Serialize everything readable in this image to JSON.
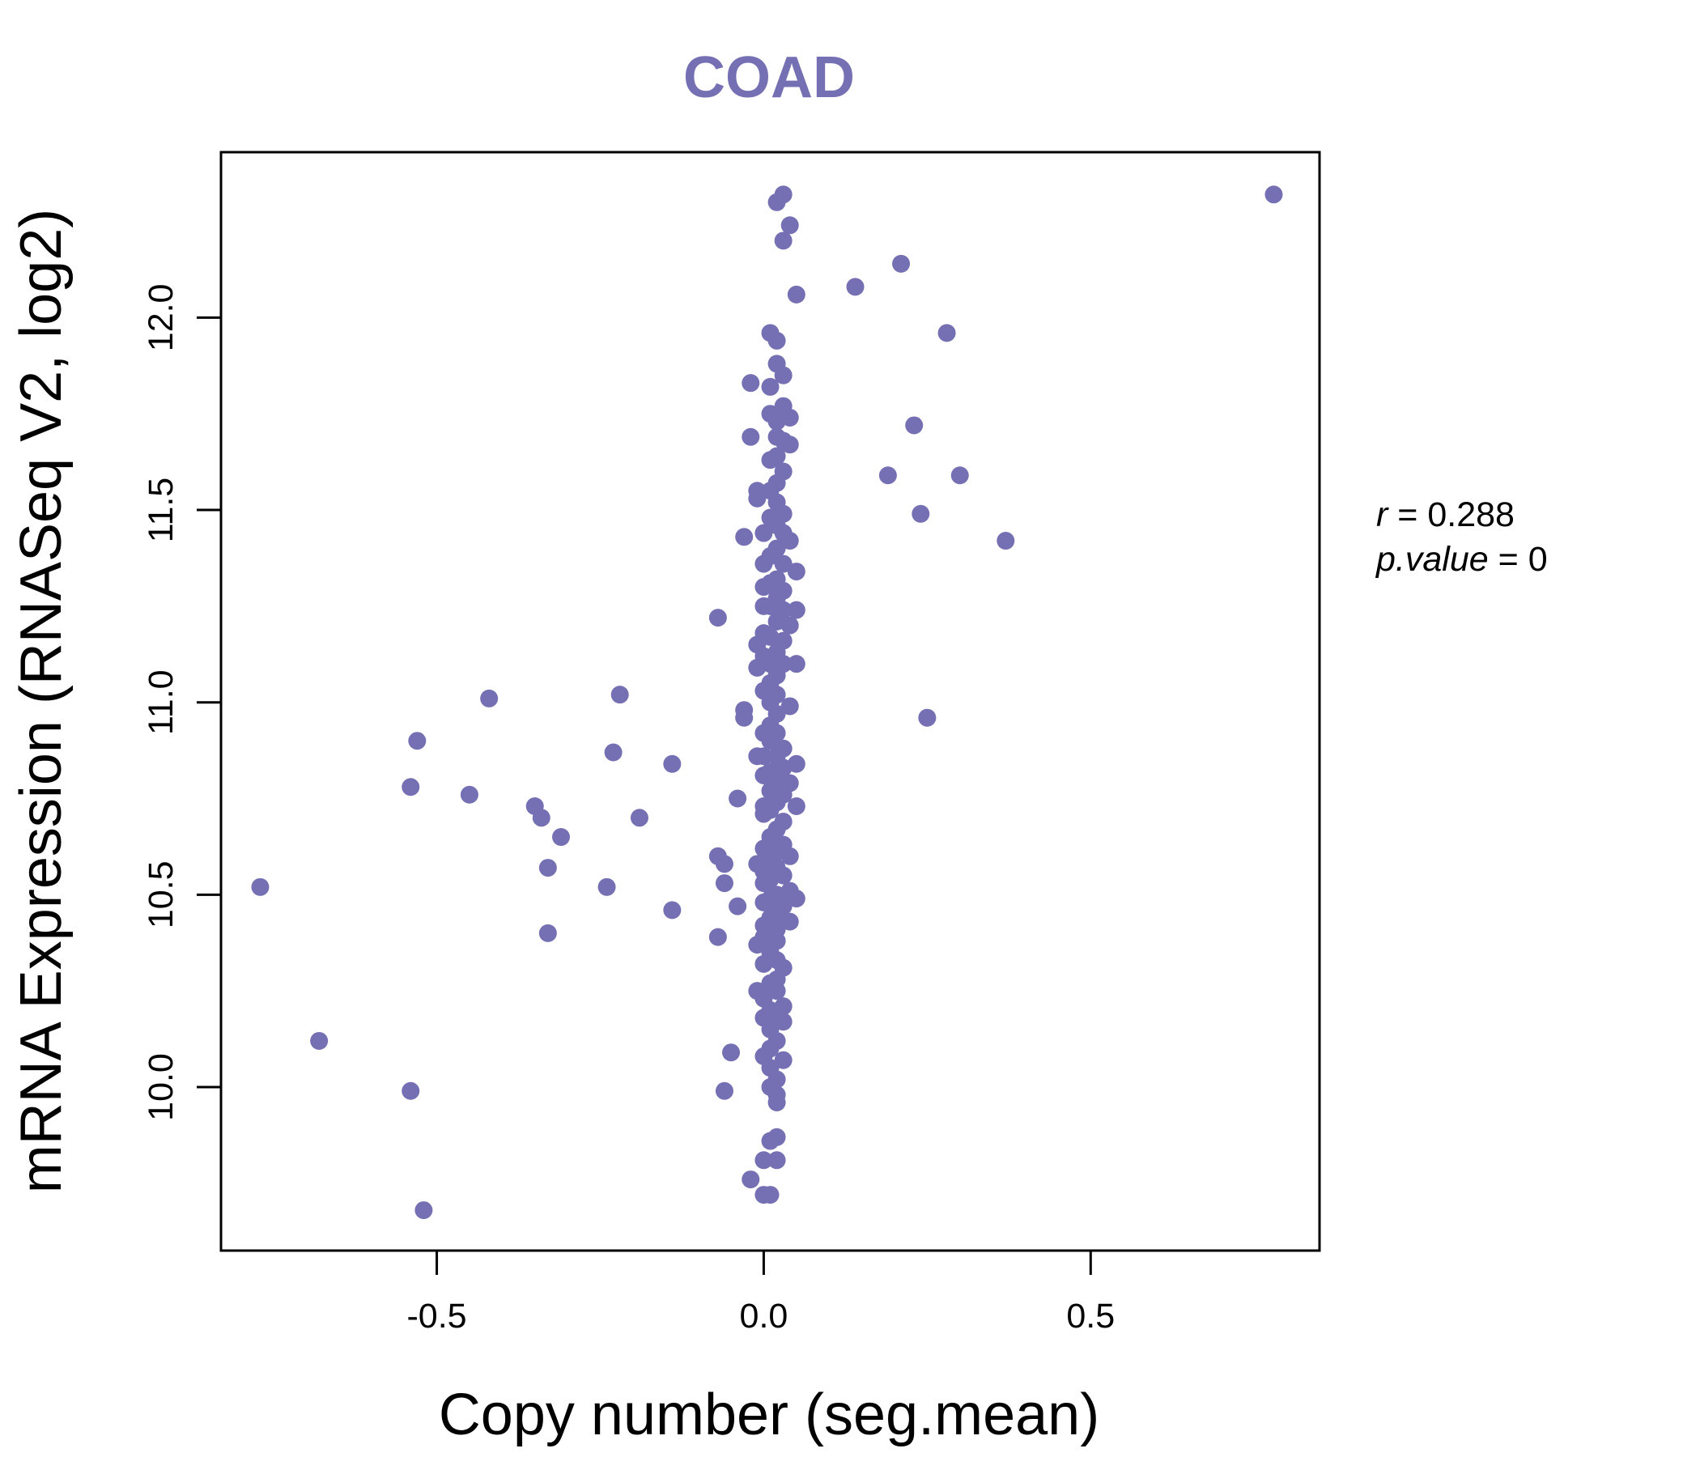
{
  "chart_data": {
    "type": "scatter",
    "title": "COAD",
    "xlabel": "Copy number (seg.mean)",
    "ylabel": "mRNA Expression (RNASeq V2, log2)",
    "xlim": [
      -0.83,
      0.85
    ],
    "ylim": [
      9.575,
      12.43
    ],
    "xticks": [
      -0.5,
      0.0,
      0.5
    ],
    "xtick_labels": [
      "-0.5",
      "0.0",
      "0.5"
    ],
    "yticks": [
      10.0,
      10.5,
      11.0,
      11.5,
      12.0
    ],
    "ytick_labels": [
      "10.0",
      "10.5",
      "11.0",
      "11.5",
      "12.0"
    ],
    "grid": false,
    "point_color": "#7570b3",
    "stats": {
      "r_symbol": "r",
      "r_value": "0.288",
      "p_symbol": "p.value",
      "p_value": "0"
    },
    "points": [
      [
        0.03,
        12.32
      ],
      [
        0.02,
        12.3
      ],
      [
        0.04,
        12.24
      ],
      [
        0.03,
        12.2
      ],
      [
        0.05,
        12.06
      ],
      [
        0.01,
        11.96
      ],
      [
        0.02,
        11.94
      ],
      [
        0.02,
        11.88
      ],
      [
        0.03,
        11.85
      ],
      [
        -0.02,
        11.83
      ],
      [
        0.01,
        11.82
      ],
      [
        0.03,
        11.77
      ],
      [
        0.01,
        11.75
      ],
      [
        0.04,
        11.74
      ],
      [
        0.02,
        11.73
      ],
      [
        0.02,
        11.69
      ],
      [
        -0.02,
        11.69
      ],
      [
        0.03,
        11.68
      ],
      [
        0.04,
        11.67
      ],
      [
        0.02,
        11.64
      ],
      [
        0.01,
        11.63
      ],
      [
        0.03,
        11.6
      ],
      [
        0.02,
        11.57
      ],
      [
        0.01,
        11.55
      ],
      [
        -0.01,
        11.55
      ],
      [
        -0.01,
        11.53
      ],
      [
        0.02,
        11.52
      ],
      [
        0.03,
        11.49
      ],
      [
        0.01,
        11.48
      ],
      [
        0.02,
        11.46
      ],
      [
        0.03,
        11.44
      ],
      [
        0.0,
        11.44
      ],
      [
        0.04,
        11.42
      ],
      [
        0.02,
        11.4
      ],
      [
        -0.03,
        11.43
      ],
      [
        0.01,
        11.38
      ],
      [
        0.03,
        11.36
      ],
      [
        0.0,
        11.36
      ],
      [
        0.05,
        11.34
      ],
      [
        0.02,
        11.32
      ],
      [
        0.01,
        11.31
      ],
      [
        0.0,
        11.3
      ],
      [
        0.03,
        11.29
      ],
      [
        0.02,
        11.27
      ],
      [
        0.01,
        11.25
      ],
      [
        0.0,
        11.25
      ],
      [
        0.03,
        11.24
      ],
      [
        0.05,
        11.24
      ],
      [
        0.02,
        11.21
      ],
      [
        0.04,
        11.2
      ],
      [
        -0.07,
        11.22
      ],
      [
        0.0,
        11.18
      ],
      [
        0.01,
        11.17
      ],
      [
        0.03,
        11.16
      ],
      [
        -0.01,
        11.15
      ],
      [
        0.02,
        11.13
      ],
      [
        0.0,
        11.12
      ],
      [
        0.01,
        11.1
      ],
      [
        0.03,
        11.1
      ],
      [
        0.05,
        11.1
      ],
      [
        -0.01,
        11.09
      ],
      [
        0.02,
        11.07
      ],
      [
        0.01,
        11.05
      ],
      [
        0.0,
        11.03
      ],
      [
        0.02,
        11.02
      ],
      [
        0.01,
        11.0
      ],
      [
        0.04,
        10.99
      ],
      [
        -0.03,
        10.98
      ],
      [
        0.02,
        10.97
      ],
      [
        -0.03,
        10.96
      ],
      [
        0.01,
        10.94
      ],
      [
        0.02,
        10.92
      ],
      [
        0.0,
        10.92
      ],
      [
        0.01,
        10.9
      ],
      [
        0.03,
        10.88
      ],
      [
        0.0,
        10.86
      ],
      [
        0.02,
        10.86
      ],
      [
        -0.01,
        10.86
      ],
      [
        0.05,
        10.84
      ],
      [
        0.03,
        10.83
      ],
      [
        0.01,
        10.82
      ],
      [
        0.0,
        10.81
      ],
      [
        0.02,
        10.8
      ],
      [
        0.04,
        10.79
      ],
      [
        0.01,
        10.77
      ],
      [
        0.03,
        10.76
      ],
      [
        -0.04,
        10.75
      ],
      [
        0.02,
        10.74
      ],
      [
        0.0,
        10.73
      ],
      [
        0.05,
        10.73
      ],
      [
        0.01,
        10.72
      ],
      [
        0.0,
        10.71
      ],
      [
        0.03,
        10.69
      ],
      [
        0.02,
        10.67
      ],
      [
        0.01,
        10.65
      ],
      [
        0.03,
        10.63
      ],
      [
        0.0,
        10.62
      ],
      [
        0.02,
        10.61
      ],
      [
        0.04,
        10.6
      ],
      [
        -0.07,
        10.6
      ],
      [
        0.01,
        10.59
      ],
      [
        -0.01,
        10.58
      ],
      [
        -0.06,
        10.58
      ],
      [
        0.02,
        10.57
      ],
      [
        0.0,
        10.56
      ],
      [
        0.03,
        10.55
      ],
      [
        0.01,
        10.54
      ],
      [
        -0.06,
        10.53
      ],
      [
        0.0,
        10.53
      ],
      [
        0.04,
        10.51
      ],
      [
        0.02,
        10.5
      ],
      [
        0.01,
        10.49
      ],
      [
        0.05,
        10.49
      ],
      [
        0.0,
        10.48
      ],
      [
        0.03,
        10.47
      ],
      [
        -0.04,
        10.47
      ],
      [
        0.02,
        10.45
      ],
      [
        0.01,
        10.44
      ],
      [
        0.04,
        10.43
      ],
      [
        0.0,
        10.42
      ],
      [
        0.02,
        10.41
      ],
      [
        0.01,
        10.4
      ],
      [
        -0.07,
        10.39
      ],
      [
        0.0,
        10.39
      ],
      [
        0.02,
        10.38
      ],
      [
        -0.01,
        10.37
      ],
      [
        0.01,
        10.35
      ],
      [
        0.02,
        10.33
      ],
      [
        0.0,
        10.32
      ],
      [
        0.03,
        10.31
      ],
      [
        0.02,
        10.28
      ],
      [
        0.01,
        10.27
      ],
      [
        0.02,
        10.25
      ],
      [
        -0.01,
        10.25
      ],
      [
        0.0,
        10.23
      ],
      [
        0.03,
        10.21
      ],
      [
        0.01,
        10.2
      ],
      [
        0.02,
        10.19
      ],
      [
        0.0,
        10.18
      ],
      [
        0.03,
        10.17
      ],
      [
        0.01,
        10.15
      ],
      [
        0.02,
        10.12
      ],
      [
        0.01,
        10.1
      ],
      [
        -0.05,
        10.09
      ],
      [
        0.0,
        10.08
      ],
      [
        0.03,
        10.07
      ],
      [
        0.01,
        10.05
      ],
      [
        0.02,
        10.02
      ],
      [
        0.01,
        10.0
      ],
      [
        -0.06,
        9.99
      ],
      [
        0.02,
        9.98
      ],
      [
        0.02,
        9.96
      ],
      [
        0.02,
        9.87
      ],
      [
        0.01,
        9.86
      ],
      [
        0.0,
        9.81
      ],
      [
        0.02,
        9.81
      ],
      [
        -0.02,
        9.76
      ],
      [
        0.01,
        9.72
      ],
      [
        0.0,
        9.72
      ],
      [
        0.78,
        12.32
      ],
      [
        0.21,
        12.14
      ],
      [
        0.14,
        12.08
      ],
      [
        0.28,
        11.96
      ],
      [
        0.23,
        11.72
      ],
      [
        0.19,
        11.59
      ],
      [
        0.3,
        11.59
      ],
      [
        0.24,
        11.49
      ],
      [
        0.37,
        11.42
      ],
      [
        0.25,
        10.96
      ],
      [
        -0.77,
        10.52
      ],
      [
        -0.68,
        10.12
      ],
      [
        -0.54,
        9.99
      ],
      [
        -0.52,
        9.68
      ],
      [
        -0.54,
        10.78
      ],
      [
        -0.53,
        10.9
      ],
      [
        -0.45,
        10.76
      ],
      [
        -0.42,
        11.01
      ],
      [
        -0.35,
        10.73
      ],
      [
        -0.34,
        10.7
      ],
      [
        -0.33,
        10.57
      ],
      [
        -0.33,
        10.4
      ],
      [
        -0.31,
        10.65
      ],
      [
        -0.24,
        10.52
      ],
      [
        -0.22,
        11.02
      ],
      [
        -0.23,
        10.87
      ],
      [
        -0.19,
        10.7
      ],
      [
        -0.14,
        10.84
      ],
      [
        -0.14,
        10.46
      ]
    ]
  }
}
